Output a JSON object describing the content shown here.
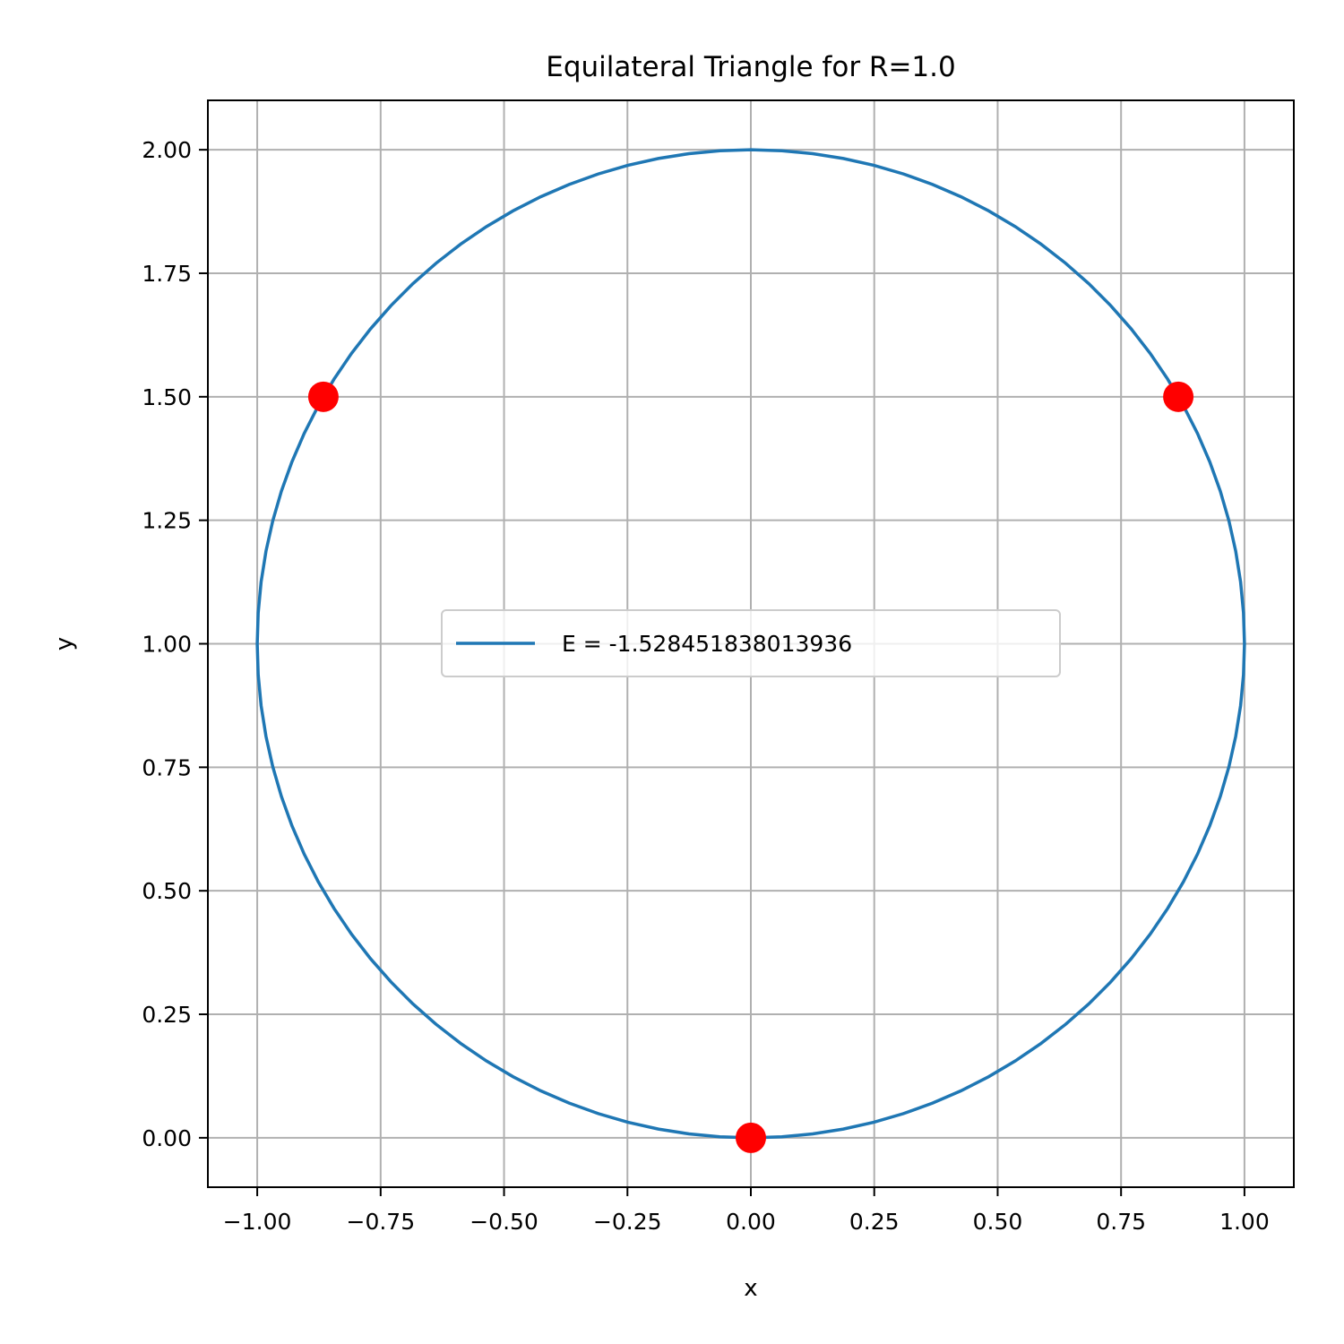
{
  "chart_data": {
    "type": "scatter",
    "title": "Equilateral Triangle for R=1.0",
    "xlabel": "x",
    "ylabel": "y",
    "xlim": [
      -1.1,
      1.1
    ],
    "ylim": [
      -0.1,
      2.1
    ],
    "xticks": [
      -1.0,
      -0.75,
      -0.5,
      -0.25,
      0.0,
      0.25,
      0.5,
      0.75,
      1.0
    ],
    "xtick_labels": [
      "−1.00",
      "−0.75",
      "−0.50",
      "−0.25",
      "0.00",
      "0.25",
      "0.50",
      "0.75",
      "1.00"
    ],
    "yticks": [
      0.0,
      0.25,
      0.5,
      0.75,
      1.0,
      1.25,
      1.5,
      1.75,
      2.0
    ],
    "ytick_labels": [
      "0.00",
      "0.25",
      "0.50",
      "0.75",
      "1.00",
      "1.25",
      "1.50",
      "1.75",
      "2.00"
    ],
    "grid": true,
    "legend_position": "center",
    "circle": {
      "label": "E = -1.528451838013936",
      "center": [
        0.0,
        1.0
      ],
      "radius": 1.0,
      "color": "#1f77b4"
    },
    "points": {
      "color": "#ff0000",
      "x": [
        -0.866,
        0.866,
        0.0
      ],
      "y": [
        1.5,
        1.5,
        0.0
      ]
    }
  }
}
